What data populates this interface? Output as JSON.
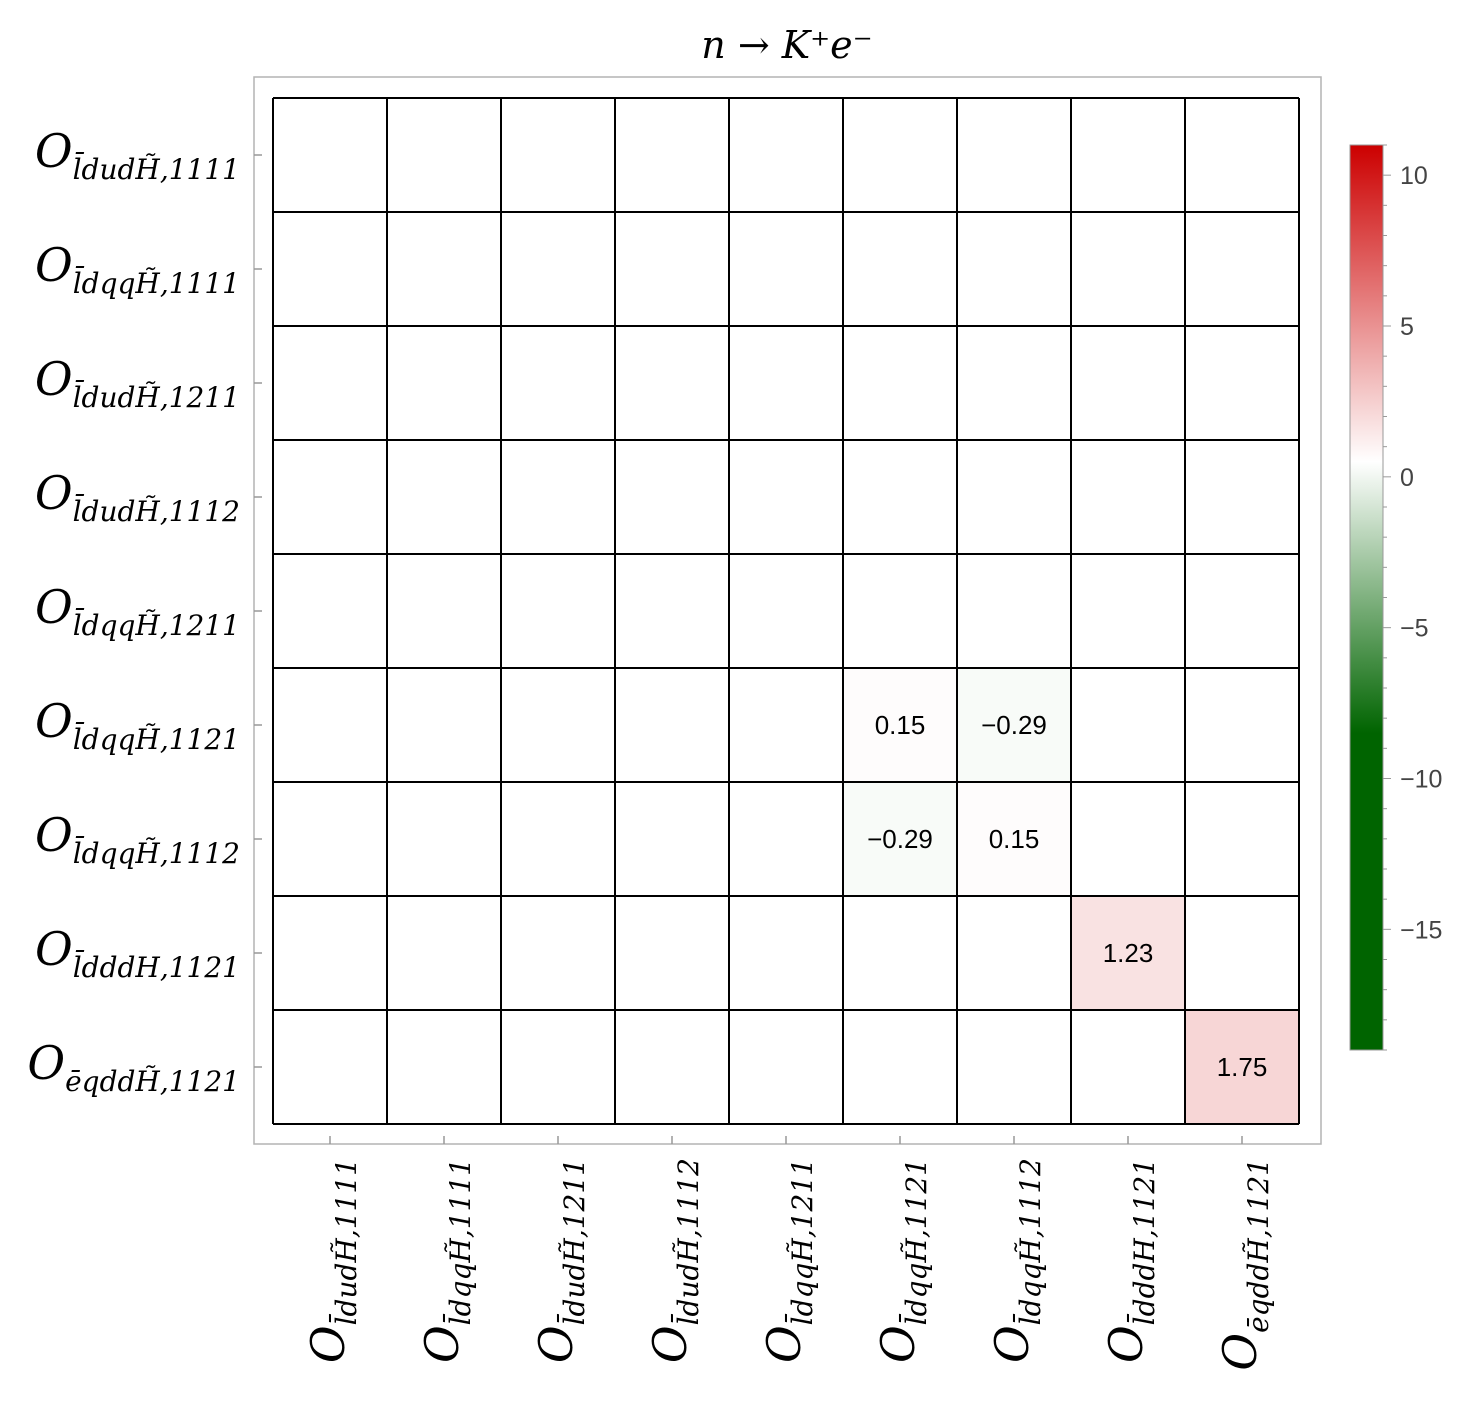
{
  "chart_data": {
    "type": "heatmap",
    "title": "n → K⁺e⁻",
    "rows": [
      {
        "name": "O",
        "sub": "l̄dudH̃,1111"
      },
      {
        "name": "O",
        "sub": "l̄dqqH̃,1111"
      },
      {
        "name": "O",
        "sub": "l̄dudH̃,1211"
      },
      {
        "name": "O",
        "sub": "l̄dudH̃,1112"
      },
      {
        "name": "O",
        "sub": "l̄dqqH̃,1211"
      },
      {
        "name": "O",
        "sub": "l̄dqqH̃,1121"
      },
      {
        "name": "O",
        "sub": "l̄dqqH̃,1112"
      },
      {
        "name": "O",
        "sub": "l̄dddH,1121"
      },
      {
        "name": "O",
        "sub": "ēqddH̃,1121"
      }
    ],
    "columns": [
      {
        "name": "O",
        "sub": "l̄dudH̃,1111"
      },
      {
        "name": "O",
        "sub": "l̄dqqH̃,1111"
      },
      {
        "name": "O",
        "sub": "l̄dudH̃,1211"
      },
      {
        "name": "O",
        "sub": "l̄dudH̃,1112"
      },
      {
        "name": "O",
        "sub": "l̄dqqH̃,1211"
      },
      {
        "name": "O",
        "sub": "l̄dqqH̃,1121"
      },
      {
        "name": "O",
        "sub": "l̄dqqH̃,1112"
      },
      {
        "name": "O",
        "sub": "l̄dddH,1121"
      },
      {
        "name": "O",
        "sub": "ēqddH̃,1121"
      }
    ],
    "cells": [
      {
        "row": 5,
        "col": 5,
        "value": 0.15,
        "label": "0.15"
      },
      {
        "row": 5,
        "col": 6,
        "value": -0.29,
        "label": "−0.29"
      },
      {
        "row": 6,
        "col": 5,
        "value": -0.29,
        "label": "−0.29"
      },
      {
        "row": 6,
        "col": 6,
        "value": 0.15,
        "label": "0.15"
      },
      {
        "row": 7,
        "col": 7,
        "value": 1.23,
        "label": "1.23"
      },
      {
        "row": 8,
        "col": 8,
        "value": 1.75,
        "label": "1.75"
      }
    ],
    "colorbar": {
      "range": [
        -19,
        11
      ],
      "ticks": [
        {
          "value": 10,
          "label": "10"
        },
        {
          "value": 5,
          "label": "5"
        },
        {
          "value": 0,
          "label": "0"
        },
        {
          "value": -5,
          "label": "−5"
        },
        {
          "value": -10,
          "label": "−10"
        },
        {
          "value": -15,
          "label": "−15"
        }
      ],
      "positive_color": "#cc0000",
      "neutral_color": "#ffffff",
      "negative_color": "#006400"
    },
    "grid": true,
    "legend_position": "right"
  }
}
